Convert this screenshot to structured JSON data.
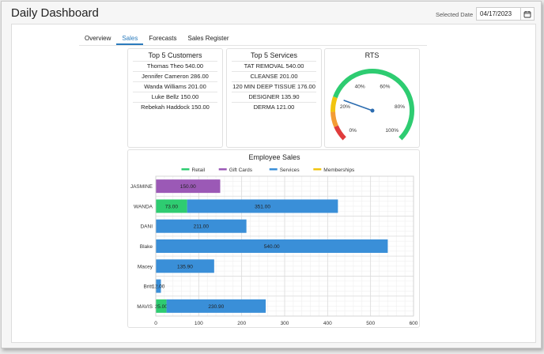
{
  "header": {
    "title": "Daily Dashboard",
    "date_label": "Selected Date",
    "date_value": "04/17/2023"
  },
  "tabs": [
    {
      "label": "Overview",
      "active": false
    },
    {
      "label": "Sales",
      "active": true
    },
    {
      "label": "Forecasts",
      "active": false
    },
    {
      "label": "Sales Register",
      "active": false
    }
  ],
  "top_customers": {
    "title": "Top 5 Customers",
    "items": [
      "Thomas Theo 540.00",
      "Jennifer Cameron 286.00",
      "Wanda Williams 201.00",
      "Luke Bellz 150.00",
      "Rebekah Haddock 150.00"
    ]
  },
  "top_services": {
    "title": "Top 5 Services",
    "items": [
      "TAT REMOVAL 540.00",
      "CLEANSE 201.00",
      "120 MIN DEEP TISSUE 176.00",
      "DESIGNER 135.90",
      "DERMA 121.00"
    ]
  },
  "rts": {
    "title": "RTS",
    "tick_labels": [
      "0%",
      "20%",
      "40%",
      "60%",
      "80%",
      "100%"
    ],
    "value_percent": 24,
    "band_colors": [
      "#e03c3c",
      "#f39c35",
      "#f1c40f",
      "#2ecc71"
    ]
  },
  "chart_data": {
    "type": "bar",
    "orientation": "horizontal",
    "stacked": true,
    "title": "Employee Sales",
    "categories": [
      "JASMINE",
      "WANDA",
      "DANI",
      "Blake",
      "Macey",
      "Britt",
      "MAVIS"
    ],
    "series": [
      {
        "name": "Retail",
        "color": "#2ecc71",
        "values": [
          0,
          73.0,
          0,
          0,
          0,
          0,
          25.0
        ],
        "labels": [
          "",
          "73.00",
          "",
          "",
          "",
          "",
          "25.00"
        ]
      },
      {
        "name": "Gift Cards",
        "color": "#9b59b6",
        "values": [
          150.0,
          0,
          0,
          0,
          0,
          0,
          0
        ],
        "labels": [
          "150.00",
          "",
          "",
          "",
          "",
          "",
          ""
        ]
      },
      {
        "name": "Services",
        "color": "#3a8fd8",
        "values": [
          0,
          351.0,
          211.0,
          540.0,
          135.9,
          12.0,
          230.9
        ],
        "labels": [
          "",
          "351.00",
          "211.00",
          "540.00",
          "135.90",
          "12.00",
          "230.90"
        ]
      },
      {
        "name": "Memberships",
        "color": "#f1c40f",
        "values": [
          0,
          0,
          0,
          0,
          0,
          0,
          0
        ],
        "labels": [
          "",
          "",
          "",
          "",
          "",
          "",
          ""
        ]
      }
    ],
    "xlim": [
      0,
      600
    ],
    "xticks": [
      0,
      100,
      200,
      300,
      400,
      500,
      600
    ],
    "grid": true,
    "legend": "top"
  }
}
